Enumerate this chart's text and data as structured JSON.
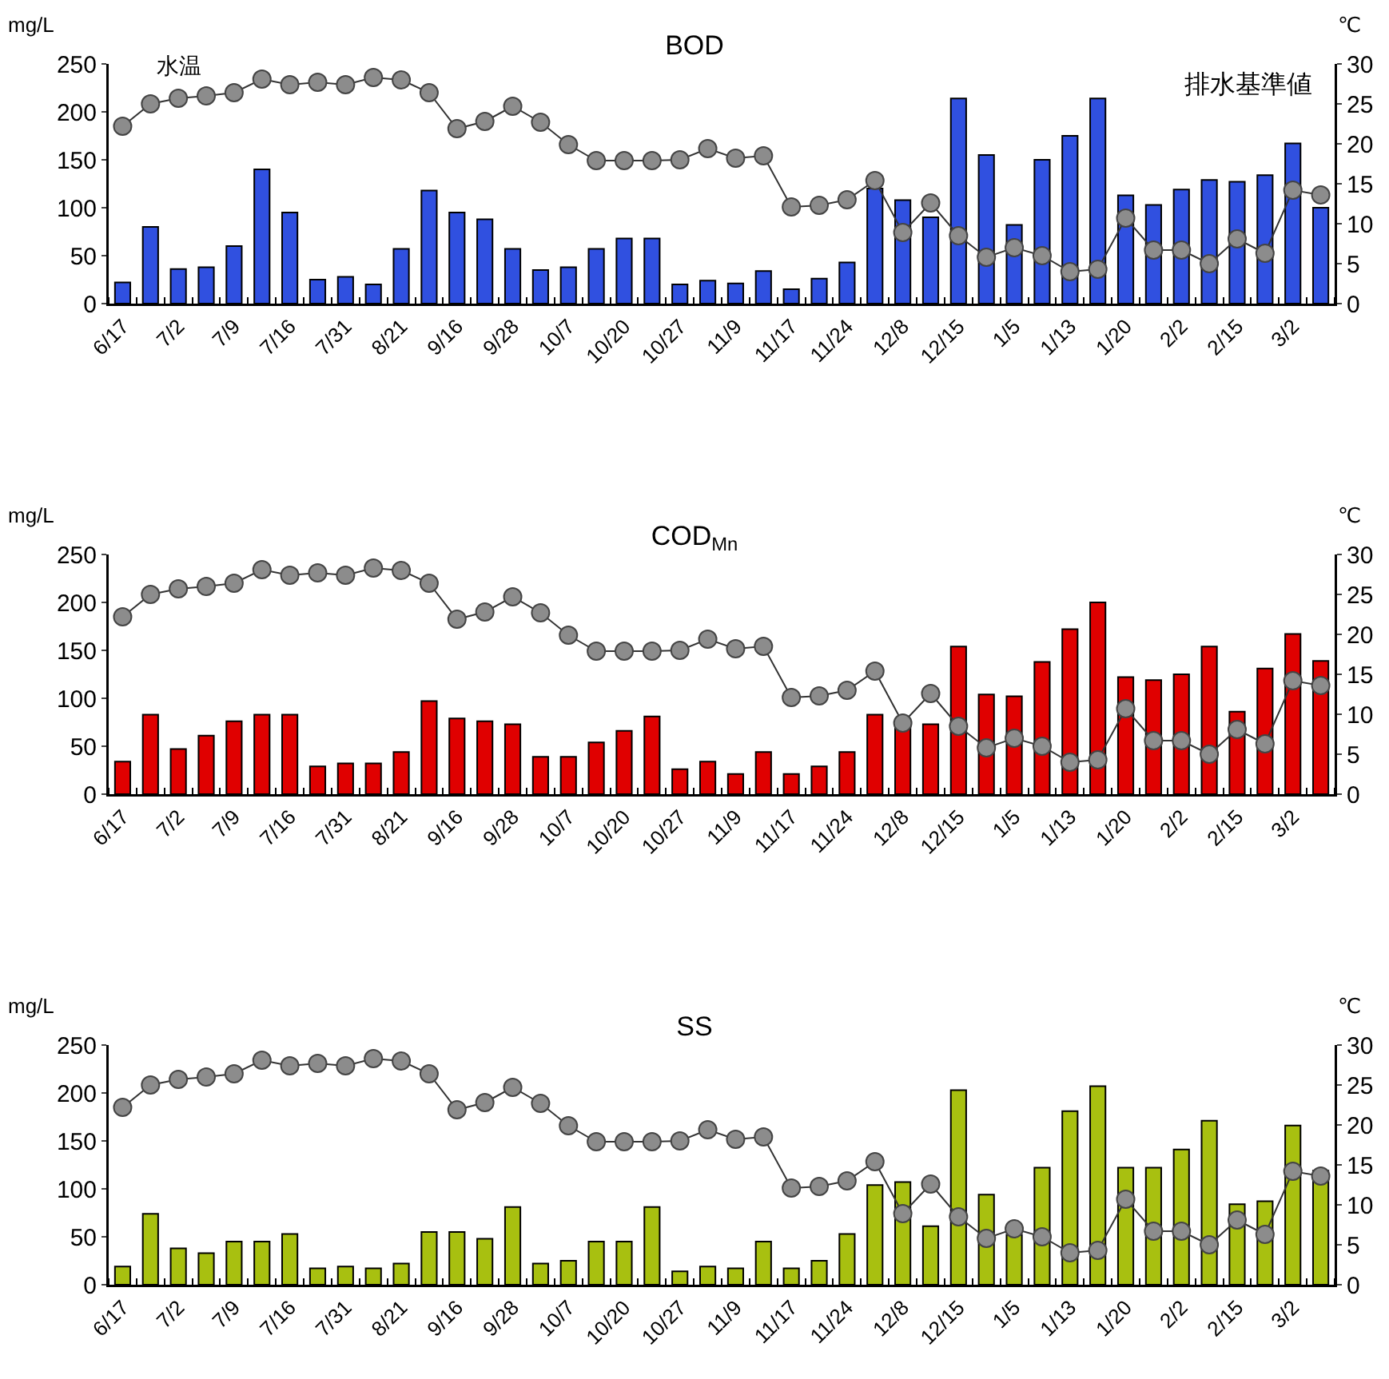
{
  "chart_data": [
    {
      "type": "bar",
      "title": "BOD",
      "ylabel": "mg/L",
      "y2label": "℃",
      "categories": [
        "6/17",
        null,
        "7/2",
        null,
        "7/9",
        null,
        "7/16",
        null,
        "7/31",
        null,
        "8/21",
        null,
        "9/16",
        null,
        "9/28",
        null,
        "10/7",
        null,
        "10/20",
        null,
        "10/27",
        null,
        "11/9",
        null,
        "11/17",
        null,
        "11/24",
        null,
        "12/8",
        null,
        "12/15",
        null,
        "1/5",
        null,
        "1/13",
        null,
        "1/20",
        null,
        "2/2",
        null,
        "2/15",
        null,
        "3/2",
        null
      ],
      "series": [
        {
          "color": "#3050e0",
          "values": [
            22,
            80,
            36,
            38,
            60,
            140,
            95,
            25,
            28,
            20,
            57,
            118,
            95,
            88,
            57,
            35,
            38,
            57,
            68,
            68,
            20,
            24,
            21,
            34,
            15,
            26,
            43,
            120,
            108,
            90,
            214,
            155,
            82,
            150,
            175,
            214,
            113,
            103,
            119,
            129,
            127,
            134,
            167,
            100
          ]
        },
        {
          "type": "line",
          "axis": "y2",
          "name": "水温",
          "color": "#8c8c8c",
          "marker": "circle",
          "values": [
            22.2,
            25.0,
            25.7,
            26.0,
            26.4,
            28.1,
            27.4,
            27.7,
            27.4,
            28.3,
            28.0,
            26.4,
            21.9,
            22.8,
            24.7,
            22.7,
            19.9,
            17.9,
            17.9,
            17.9,
            18.0,
            19.4,
            18.2,
            18.5,
            12.1,
            12.3,
            13.0,
            15.4,
            8.9,
            12.6,
            8.5,
            5.8,
            7.0,
            6.0,
            4.0,
            4.3,
            10.7,
            6.7,
            6.7,
            5.0,
            8.1,
            6.3,
            14.2,
            13.6
          ]
        }
      ],
      "ylim": [
        0,
        250
      ],
      "yticks": [
        0,
        50,
        100,
        150,
        200,
        250
      ],
      "y2lim": [
        0,
        30
      ],
      "y2ticks": [
        0,
        5,
        10,
        15,
        20,
        25,
        30
      ],
      "grid": false,
      "legend": false,
      "annotations": [
        "排水基準値"
      ]
    },
    {
      "type": "bar",
      "title": "COD$_{Mn}$",
      "ylabel": "mg/L",
      "y2label": "℃",
      "categories": [
        "6/17",
        null,
        "7/2",
        null,
        "7/9",
        null,
        "7/16",
        null,
        "7/31",
        null,
        "8/21",
        null,
        "9/16",
        null,
        "9/28",
        null,
        "10/7",
        null,
        "10/20",
        null,
        "10/27",
        null,
        "11/9",
        null,
        "11/17",
        null,
        "11/24",
        null,
        "12/8",
        null,
        "12/15",
        null,
        "1/5",
        null,
        "1/13",
        null,
        "1/20",
        null,
        "2/2",
        null,
        "2/15",
        null,
        "3/2",
        null
      ],
      "series": [
        {
          "color": "#e00000",
          "values": [
            34,
            83,
            47,
            61,
            76,
            83,
            83,
            29,
            32,
            32,
            44,
            97,
            79,
            76,
            73,
            39,
            39,
            54,
            66,
            81,
            26,
            34,
            21,
            44,
            21,
            29,
            44,
            83,
            78,
            73,
            154,
            104,
            102,
            138,
            172,
            200,
            122,
            119,
            125,
            154,
            86,
            131,
            167,
            139
          ]
        },
        {
          "type": "line",
          "axis": "y2",
          "color": "#8c8c8c",
          "marker": "circle",
          "values": [
            22.2,
            25.0,
            25.7,
            26.0,
            26.4,
            28.1,
            27.4,
            27.7,
            27.4,
            28.3,
            28.0,
            26.4,
            21.9,
            22.8,
            24.7,
            22.7,
            19.9,
            17.9,
            17.9,
            17.9,
            18.0,
            19.4,
            18.2,
            18.5,
            12.1,
            12.3,
            13.0,
            15.4,
            8.9,
            12.6,
            8.5,
            5.8,
            7.0,
            6.0,
            4.0,
            4.3,
            10.7,
            6.7,
            6.7,
            5.0,
            8.1,
            6.3,
            14.2,
            13.6
          ]
        }
      ],
      "ylim": [
        0,
        250
      ],
      "yticks": [
        0,
        50,
        100,
        150,
        200,
        250
      ],
      "y2lim": [
        0,
        30
      ],
      "y2ticks": [
        0,
        5,
        10,
        15,
        20,
        25,
        30
      ],
      "grid": false,
      "legend": false
    },
    {
      "type": "bar",
      "title": "SS",
      "ylabel": "mg/L",
      "y2label": "℃",
      "categories": [
        "6/17",
        null,
        "7/2",
        null,
        "7/9",
        null,
        "7/16",
        null,
        "7/31",
        null,
        "8/21",
        null,
        "9/16",
        null,
        "9/28",
        null,
        "10/7",
        null,
        "10/20",
        null,
        "10/27",
        null,
        "11/9",
        null,
        "11/17",
        null,
        "11/24",
        null,
        "12/8",
        null,
        "12/15",
        null,
        "1/5",
        null,
        "1/13",
        null,
        "1/20",
        null,
        "2/2",
        null,
        "2/15",
        null,
        "3/2",
        null
      ],
      "series": [
        {
          "color": "#a8c010",
          "values": [
            19,
            74,
            38,
            33,
            45,
            45,
            53,
            17,
            19,
            17,
            22,
            55,
            55,
            48,
            81,
            22,
            25,
            45,
            45,
            81,
            14,
            19,
            17,
            45,
            17,
            25,
            53,
            104,
            107,
            61,
            203,
            94,
            52,
            122,
            181,
            207,
            122,
            122,
            141,
            171,
            84,
            87,
            166,
            119
          ]
        },
        {
          "type": "line",
          "axis": "y2",
          "color": "#8c8c8c",
          "marker": "circle",
          "values": [
            22.2,
            25.0,
            25.7,
            26.0,
            26.4,
            28.1,
            27.4,
            27.7,
            27.4,
            28.3,
            28.0,
            26.4,
            21.9,
            22.8,
            24.7,
            22.7,
            19.9,
            17.9,
            17.9,
            17.9,
            18.0,
            19.4,
            18.2,
            18.5,
            12.1,
            12.3,
            13.0,
            15.4,
            8.9,
            12.6,
            8.5,
            5.8,
            7.0,
            6.0,
            4.0,
            4.3,
            10.7,
            6.7,
            6.7,
            5.0,
            8.1,
            6.3,
            14.2,
            13.6
          ]
        }
      ],
      "ylim": [
        0,
        250
      ],
      "yticks": [
        0,
        50,
        100,
        150,
        200,
        250
      ],
      "y2lim": [
        0,
        30
      ],
      "y2ticks": [
        0,
        5,
        10,
        15,
        20,
        25,
        30
      ],
      "grid": false,
      "legend": false
    }
  ]
}
